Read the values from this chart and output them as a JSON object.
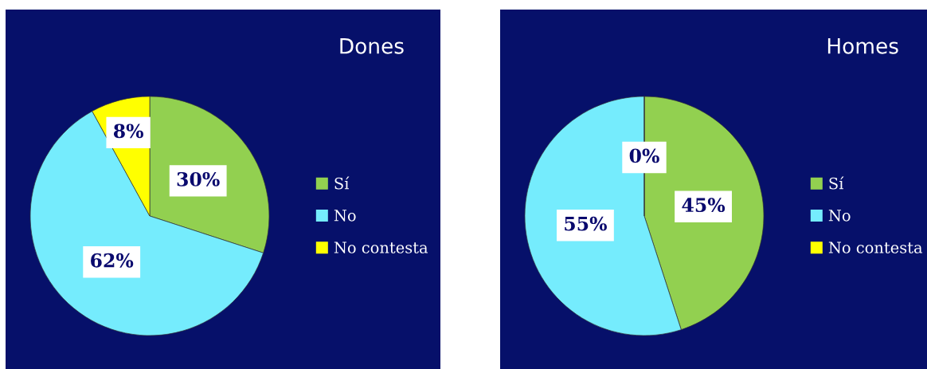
{
  "chart_data": [
    {
      "type": "pie",
      "title": "Dones",
      "categories": [
        "Sí",
        "No",
        "No contesta"
      ],
      "values": [
        30,
        62,
        8
      ],
      "colors": [
        "#92d050",
        "#75ecfd",
        "#ffff00"
      ],
      "value_labels": [
        "30%",
        "62%",
        "8%"
      ],
      "legend": "right"
    },
    {
      "type": "pie",
      "title": "Homes",
      "categories": [
        "Sí",
        "No",
        "No contesta"
      ],
      "values": [
        45,
        55,
        0
      ],
      "colors": [
        "#92d050",
        "#75ecfd",
        "#ffff00"
      ],
      "value_labels": [
        "45%",
        "55%",
        "0%"
      ],
      "legend": "right"
    }
  ]
}
